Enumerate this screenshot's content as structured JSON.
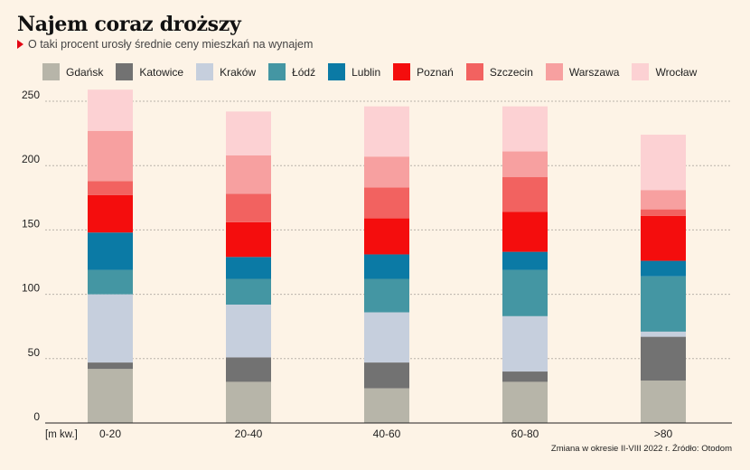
{
  "header": {
    "title": "Najem coraz droższy",
    "subtitle": "O taki procent urosły średnie ceny mieszkań na wynajem"
  },
  "footer": {
    "source": "Zmiana w okresie II-VIII 2022 r. Źródło: Otodom"
  },
  "colors": {
    "background": "#fdf3e6",
    "accent": "#e30613"
  },
  "chart_data": {
    "type": "bar",
    "stacked": true,
    "x_unit_label": "[m kw.]",
    "categories": [
      "0-20",
      "20-40",
      "40-60",
      "60-80",
      ">80"
    ],
    "ylim": [
      0,
      250
    ],
    "yticks": [
      0,
      50,
      100,
      150,
      200,
      250
    ],
    "grid": true,
    "legend_position": "top",
    "series": [
      {
        "name": "Gdańsk",
        "color": "#b7b5a9",
        "values": [
          42,
          32,
          27,
          32,
          33
        ]
      },
      {
        "name": "Katowice",
        "color": "#727272",
        "values": [
          5,
          19,
          20,
          8,
          34
        ]
      },
      {
        "name": "Kraków",
        "color": "#c6cfdd",
        "values": [
          53,
          41,
          39,
          43,
          4
        ]
      },
      {
        "name": "Łódź",
        "color": "#4496a3",
        "values": [
          19,
          20,
          26,
          36,
          43
        ]
      },
      {
        "name": "Lublin",
        "color": "#0b7aa5",
        "values": [
          29,
          17,
          19,
          14,
          12
        ]
      },
      {
        "name": "Poznań",
        "color": "#f40d0d",
        "values": [
          29,
          27,
          28,
          31,
          35
        ]
      },
      {
        "name": "Szczecin",
        "color": "#f26260",
        "values": [
          11,
          22,
          24,
          27,
          5
        ]
      },
      {
        "name": "Warszawa",
        "color": "#f7a0a0",
        "values": [
          39,
          30,
          24,
          20,
          15
        ]
      },
      {
        "name": "Wrocław",
        "color": "#fcd1d3",
        "values": [
          32,
          34,
          39,
          35,
          43
        ]
      }
    ]
  }
}
